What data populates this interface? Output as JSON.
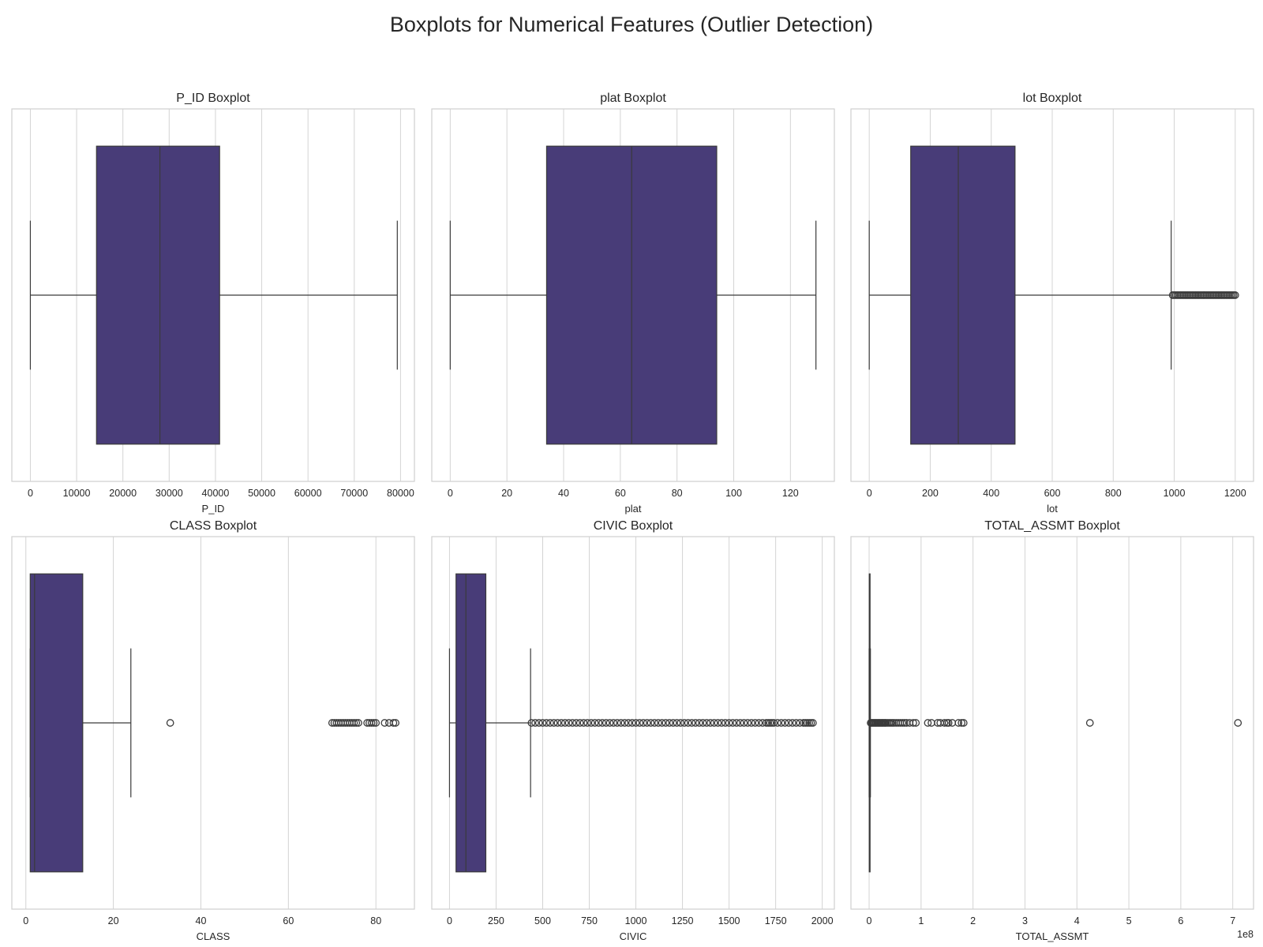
{
  "title": "Boxplots for Numerical Features (Outlier Detection)",
  "colors": {
    "box_fill": "#483c78",
    "line": "#3a3a3a",
    "grid": "#d4d4d4",
    "frame": "#cfcfcf"
  },
  "chart_data": [
    {
      "type": "boxplot",
      "title": "P_ID Boxplot",
      "xlabel": "P_ID",
      "xlim": [
        -4000,
        83000
      ],
      "ticks": [
        0,
        10000,
        20000,
        30000,
        40000,
        50000,
        60000,
        70000,
        80000
      ],
      "tick_labels": [
        "0",
        "10000",
        "20000",
        "30000",
        "40000",
        "50000",
        "60000",
        "70000",
        "80000"
      ],
      "grid": true,
      "whisker_low": 0,
      "q1": 14300,
      "median": 28000,
      "q3": 40900,
      "whisker_high": 79300,
      "outliers": []
    },
    {
      "type": "boxplot",
      "title": "plat Boxplot",
      "xlabel": "plat",
      "xlim": [
        -6.5,
        135.5
      ],
      "ticks": [
        0,
        20,
        40,
        60,
        80,
        100,
        120
      ],
      "tick_labels": [
        "0",
        "20",
        "40",
        "60",
        "80",
        "100",
        "120"
      ],
      "grid": true,
      "whisker_low": 0,
      "q1": 34,
      "median": 64,
      "q3": 94,
      "whisker_high": 129,
      "outliers": []
    },
    {
      "type": "boxplot",
      "title": "lot Boxplot",
      "xlabel": "lot",
      "xlim": [
        -60,
        1260
      ],
      "ticks": [
        0,
        200,
        400,
        600,
        800,
        1000,
        1200
      ],
      "tick_labels": [
        "0",
        "200",
        "400",
        "600",
        "800",
        "1000",
        "1200"
      ],
      "grid": true,
      "whisker_low": 0,
      "q1": 136,
      "median": 292,
      "q3": 478,
      "whisker_high": 990,
      "outliers": [
        995,
        1000,
        1005,
        1010,
        1015,
        1020,
        1025,
        1030,
        1035,
        1040,
        1045,
        1050,
        1055,
        1060,
        1065,
        1070,
        1075,
        1080,
        1085,
        1090,
        1095,
        1100,
        1105,
        1110,
        1115,
        1120,
        1125,
        1130,
        1135,
        1140,
        1145,
        1150,
        1155,
        1160,
        1165,
        1170,
        1175,
        1180,
        1185,
        1190,
        1195,
        1200
      ]
    },
    {
      "type": "boxplot",
      "title": "CLASS Boxplot",
      "xlabel": "CLASS",
      "xlim": [
        -3.2,
        88.8
      ],
      "ticks": [
        0,
        20,
        40,
        60,
        80
      ],
      "tick_labels": [
        "0",
        "20",
        "40",
        "60",
        "80"
      ],
      "grid": true,
      "whisker_low": 1,
      "q1": 1,
      "median": 2,
      "q3": 13,
      "whisker_high": 24,
      "outliers": [
        33,
        70,
        70.5,
        71,
        71.5,
        72,
        72.5,
        73,
        73.5,
        74,
        74.5,
        75,
        75.5,
        76,
        78,
        78.5,
        79,
        79.5,
        80,
        82,
        83,
        84,
        84.5
      ]
    },
    {
      "type": "boxplot",
      "title": "CIVIC Boxplot",
      "xlabel": "CIVIC",
      "xlim": [
        -95,
        2065
      ],
      "ticks": [
        0,
        250,
        500,
        750,
        1000,
        1250,
        1500,
        1750,
        2000
      ],
      "tick_labels": [
        "0",
        "250",
        "500",
        "750",
        "1000",
        "1250",
        "1500",
        "1750",
        "2000"
      ],
      "grid": true,
      "whisker_low": 0,
      "q1": 35,
      "median": 88,
      "q3": 195,
      "whisker_high": 435,
      "outliers": [
        440,
        460,
        480,
        500,
        520,
        540,
        560,
        580,
        600,
        620,
        640,
        660,
        680,
        700,
        720,
        740,
        760,
        780,
        800,
        820,
        840,
        860,
        880,
        900,
        920,
        940,
        960,
        980,
        1000,
        1020,
        1040,
        1060,
        1080,
        1100,
        1120,
        1140,
        1160,
        1180,
        1200,
        1220,
        1240,
        1260,
        1280,
        1300,
        1320,
        1340,
        1360,
        1380,
        1400,
        1420,
        1440,
        1460,
        1480,
        1500,
        1520,
        1540,
        1560,
        1580,
        1600,
        1620,
        1640,
        1660,
        1680,
        1700,
        1710,
        1720,
        1730,
        1740,
        1760,
        1780,
        1800,
        1820,
        1840,
        1860,
        1880,
        1900,
        1910,
        1920,
        1930,
        1940,
        1950
      ]
    },
    {
      "type": "boxplot",
      "title": "TOTAL_ASSMT Boxplot",
      "xlabel": "TOTAL_ASSMT",
      "offset_text": "1e8",
      "xlim": [
        -0.35,
        7.4
      ],
      "ticks": [
        0,
        1,
        2,
        3,
        4,
        5,
        6,
        7
      ],
      "tick_labels": [
        "0",
        "1",
        "2",
        "3",
        "4",
        "5",
        "6",
        "7"
      ],
      "grid": true,
      "whisker_low": 0,
      "q1": 0.003,
      "median": 0.006,
      "q3": 0.012,
      "whisker_high": 0.025,
      "outliers": [
        0.03,
        0.05,
        0.07,
        0.09,
        0.11,
        0.13,
        0.15,
        0.17,
        0.19,
        0.21,
        0.23,
        0.25,
        0.27,
        0.29,
        0.31,
        0.33,
        0.36,
        0.39,
        0.42,
        0.45,
        0.48,
        0.52,
        0.56,
        0.6,
        0.64,
        0.68,
        0.72,
        0.78,
        0.85,
        0.9,
        1.13,
        1.2,
        1.32,
        1.37,
        1.45,
        1.5,
        1.53,
        1.6,
        1.72,
        1.78,
        1.82,
        4.25,
        7.1
      ]
    }
  ]
}
